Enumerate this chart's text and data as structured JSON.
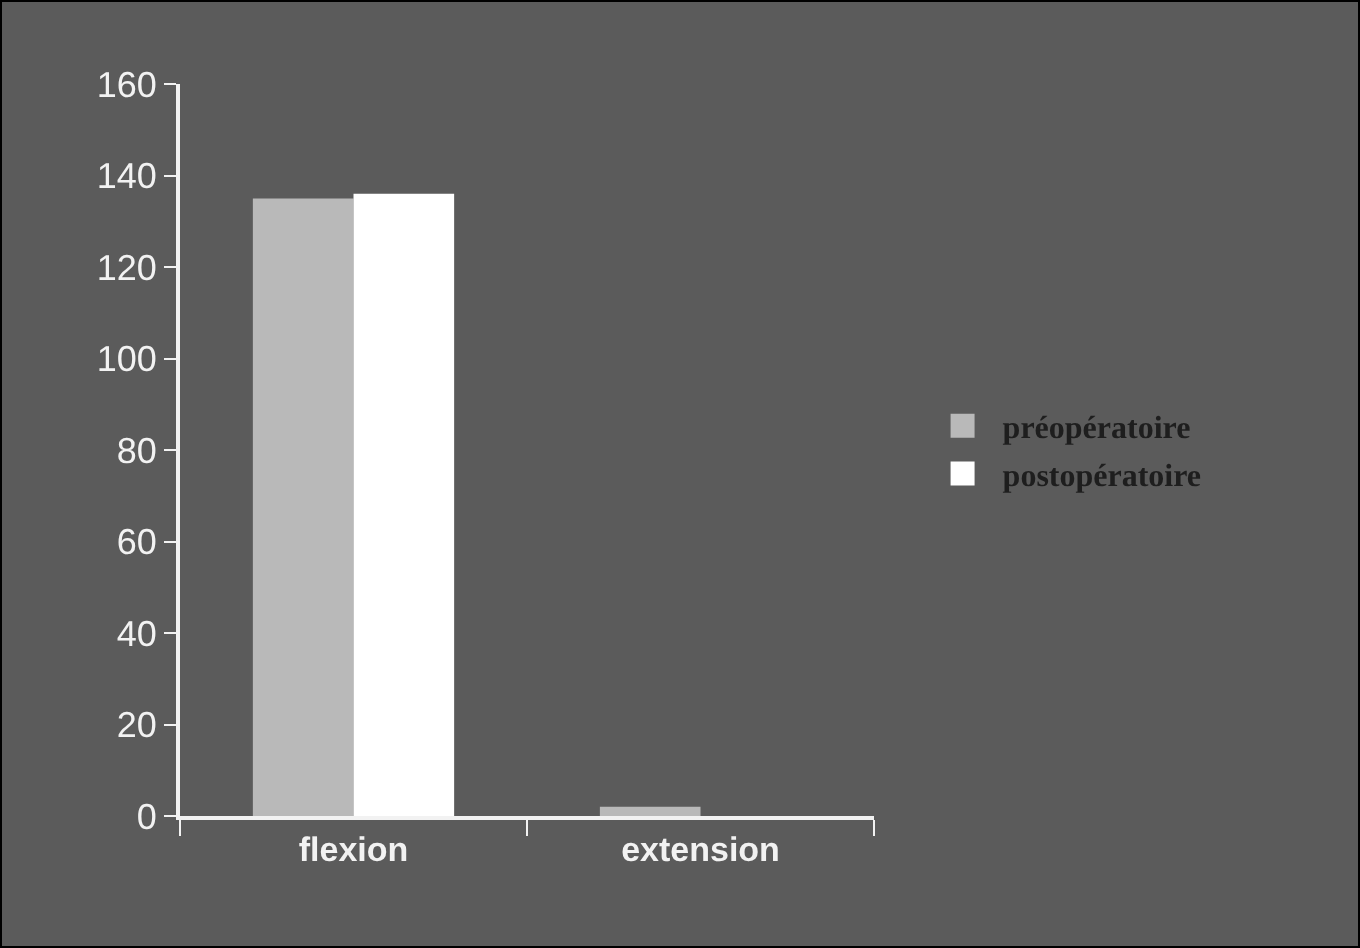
{
  "chart_data": {
    "type": "bar",
    "categories": [
      "flexion",
      "extension"
    ],
    "series": [
      {
        "name": "préopératoire",
        "color": "#b9b9b9",
        "values": [
          135,
          2
        ]
      },
      {
        "name": "postopératoire",
        "color": "#ffffff",
        "values": [
          136,
          0
        ]
      }
    ],
    "ylim": [
      0,
      160
    ],
    "yticks": [
      0,
      20,
      40,
      60,
      80,
      100,
      120,
      140,
      160
    ],
    "grid": false,
    "legend": "right"
  }
}
